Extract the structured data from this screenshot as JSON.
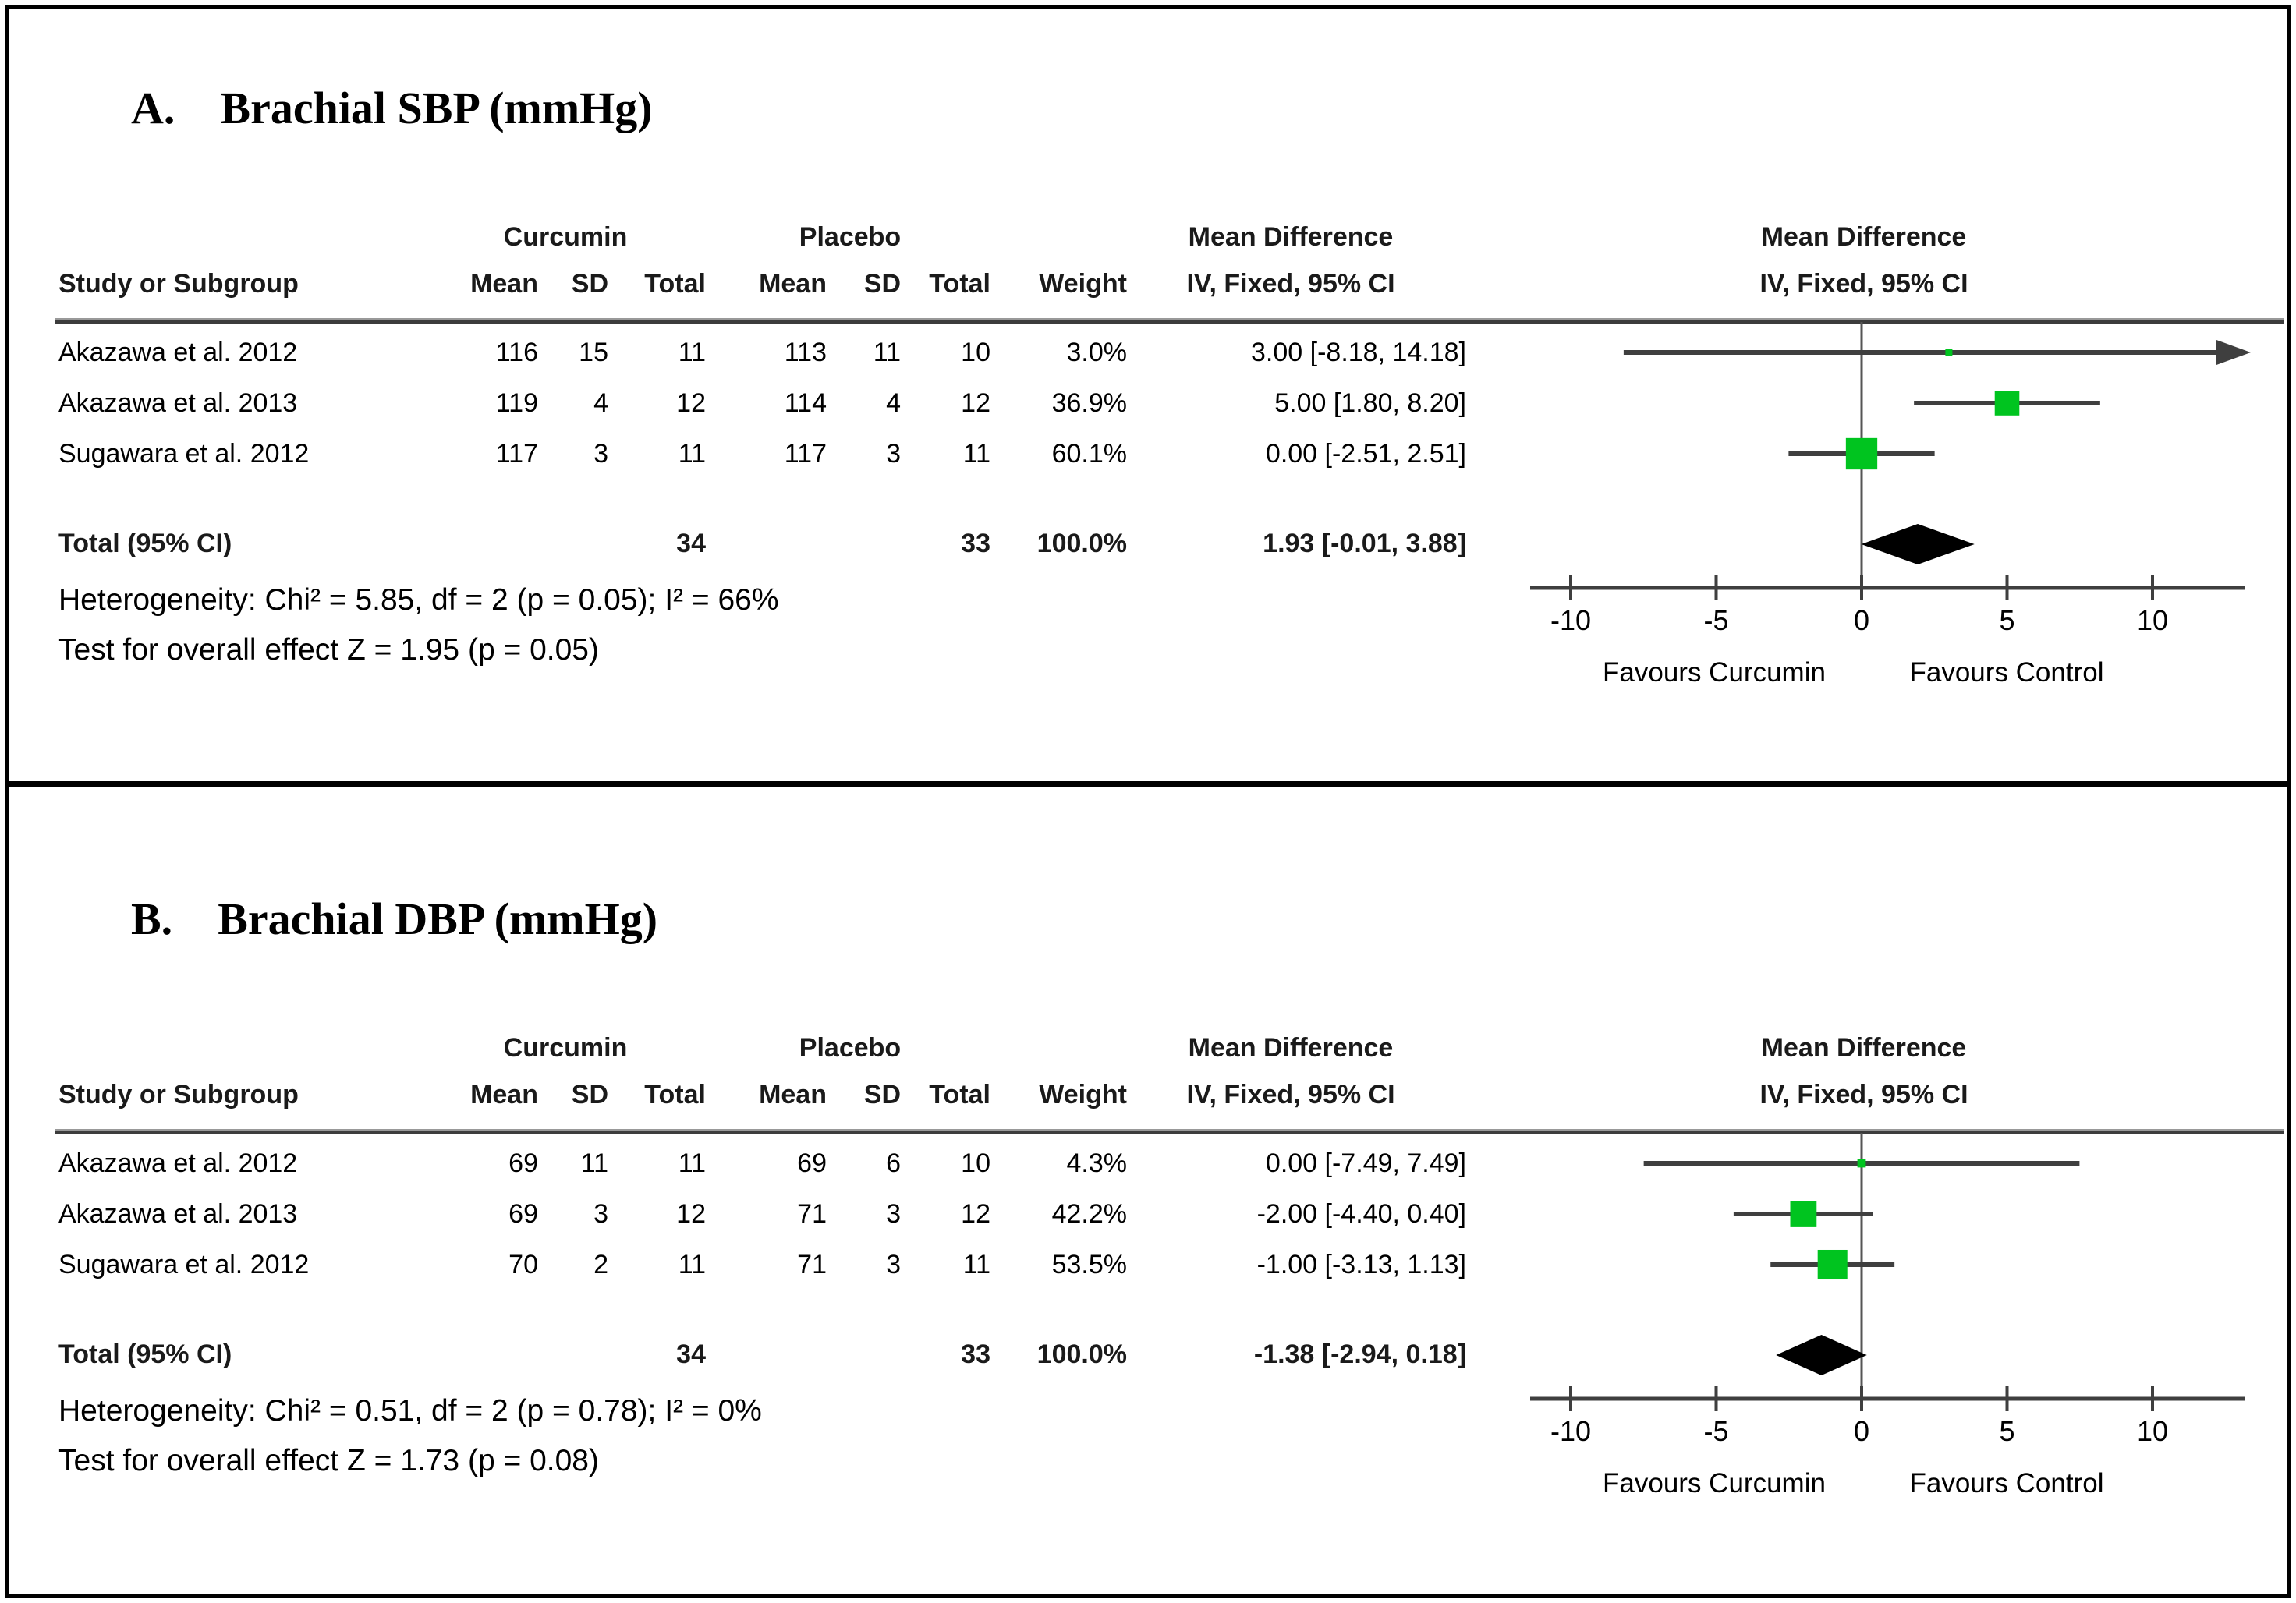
{
  "figure": {
    "panels": [
      {
        "label": "A.",
        "title": "Brachial SBP (mmHg)",
        "table": {
          "group_curcumin": "Curcumin",
          "group_placebo": "Placebo",
          "group_md": "Mean Difference",
          "columns": [
            "Study or Subgroup",
            "Mean",
            "SD",
            "Total",
            "Mean",
            "SD",
            "Total",
            "Weight",
            "IV, Fixed, 95% CI"
          ],
          "rows": [
            [
              "Akazawa et al. 2012",
              "116",
              "15",
              "11",
              "113",
              "11",
              "10",
              "3.0%",
              "3.00 [-8.18, 14.18]"
            ],
            [
              "Akazawa et al. 2013",
              "119",
              "4",
              "12",
              "114",
              "4",
              "12",
              "36.9%",
              "5.00 [1.80, 8.20]"
            ],
            [
              "Sugawara et al. 2012",
              "117",
              "3",
              "11",
              "117",
              "3",
              "11",
              "60.1%",
              "0.00 [-2.51, 2.51]"
            ]
          ],
          "total": {
            "label": "Total (95% CI)",
            "c_total": "34",
            "p_total": "33",
            "weight": "100.0%",
            "ci": "1.93 [-0.01, 3.88]"
          },
          "heterogeneity": "Heterogeneity: Chi² = 5.85, df = 2 (p = 0.05); I² = 66%",
          "overall_effect": "Test for overall effect Z = 1.95 (p = 0.05)"
        },
        "plot": {
          "header_line1": "Mean Difference",
          "header_line2": "IV, Fixed, 95% CI",
          "favours_left": "Favours Curcumin",
          "favours_right": "Favours Control"
        }
      },
      {
        "label": "B.",
        "title": "Brachial DBP (mmHg)",
        "table": {
          "group_curcumin": "Curcumin",
          "group_placebo": "Placebo",
          "group_md": "Mean Difference",
          "columns": [
            "Study or Subgroup",
            "Mean",
            "SD",
            "Total",
            "Mean",
            "SD",
            "Total",
            "Weight",
            "IV, Fixed, 95% CI"
          ],
          "rows": [
            [
              "Akazawa et al. 2012",
              "69",
              "11",
              "11",
              "69",
              "6",
              "10",
              "4.3%",
              "0.00 [-7.49, 7.49]"
            ],
            [
              "Akazawa et al. 2013",
              "69",
              "3",
              "12",
              "71",
              "3",
              "12",
              "42.2%",
              "-2.00 [-4.40, 0.40]"
            ],
            [
              "Sugawara et al. 2012",
              "70",
              "2",
              "11",
              "71",
              "3",
              "11",
              "53.5%",
              "-1.00 [-3.13, 1.13]"
            ]
          ],
          "total": {
            "label": "Total (95% CI)",
            "c_total": "34",
            "p_total": "33",
            "weight": "100.0%",
            "ci": "-1.38 [-2.94, 0.18]"
          },
          "heterogeneity": "Heterogeneity: Chi² = 0.51, df = 2 (p = 0.78); I² = 0%",
          "overall_effect": "Test for overall effect Z = 1.73 (p = 0.08)"
        },
        "plot": {
          "header_line1": "Mean Difference",
          "header_line2": "IV, Fixed, 95% CI",
          "favours_left": "Favours Curcumin",
          "favours_right": "Favours Control"
        }
      }
    ]
  },
  "colors": {
    "square_green": "#00C41F",
    "line_gray": "#3f3f3f",
    "diamond_black": "#000000"
  },
  "chart_data": [
    {
      "type": "forest",
      "title": "A. Brachial SBP (mmHg)",
      "effect_measure": "Mean Difference IV, Fixed, 95% CI",
      "studies": [
        "Akazawa et al. 2012",
        "Akazawa et al. 2013",
        "Sugawara et al. 2012"
      ],
      "estimates": [
        3.0,
        5.0,
        0.0
      ],
      "ci_low": [
        -8.18,
        1.8,
        -2.51
      ],
      "ci_high": [
        14.18,
        8.2,
        2.51
      ],
      "weights_pct": [
        3.0,
        36.9,
        60.1
      ],
      "curcumin": {
        "means": [
          116,
          119,
          117
        ],
        "sds": [
          15,
          4,
          3
        ],
        "totals": [
          11,
          12,
          11
        ],
        "total_n": 34
      },
      "placebo": {
        "means": [
          113,
          114,
          117
        ],
        "sds": [
          11,
          4,
          3
        ],
        "totals": [
          10,
          12,
          11
        ],
        "total_n": 33
      },
      "total": {
        "estimate": 1.93,
        "ci_low": -0.01,
        "ci_high": 3.88,
        "weight_pct": 100.0
      },
      "heterogeneity": {
        "chi2": 5.85,
        "df": 2,
        "p": 0.05,
        "i2_pct": 66
      },
      "overall_effect": {
        "z": 1.95,
        "p": 0.05
      },
      "xlim": [
        -10,
        10
      ],
      "xticks": [
        -10,
        -5,
        0,
        5,
        10
      ],
      "x_axis_labels": [
        "Favours Curcumin",
        "Favours Control"
      ]
    },
    {
      "type": "forest",
      "title": "B. Brachial DBP (mmHg)",
      "effect_measure": "Mean Difference IV, Fixed, 95% CI",
      "studies": [
        "Akazawa et al. 2012",
        "Akazawa et al. 2013",
        "Sugawara et al. 2012"
      ],
      "estimates": [
        0.0,
        -2.0,
        -1.0
      ],
      "ci_low": [
        -7.49,
        -4.4,
        -3.13
      ],
      "ci_high": [
        7.49,
        0.4,
        1.13
      ],
      "weights_pct": [
        4.3,
        42.2,
        53.5
      ],
      "curcumin": {
        "means": [
          69,
          69,
          70
        ],
        "sds": [
          11,
          3,
          2
        ],
        "totals": [
          11,
          12,
          11
        ],
        "total_n": 34
      },
      "placebo": {
        "means": [
          69,
          71,
          71
        ],
        "sds": [
          6,
          3,
          3
        ],
        "totals": [
          10,
          12,
          11
        ],
        "total_n": 33
      },
      "total": {
        "estimate": -1.38,
        "ci_low": -2.94,
        "ci_high": 0.18,
        "weight_pct": 100.0
      },
      "heterogeneity": {
        "chi2": 0.51,
        "df": 2,
        "p": 0.78,
        "i2_pct": 0
      },
      "overall_effect": {
        "z": 1.73,
        "p": 0.08
      },
      "xlim": [
        -10,
        10
      ],
      "xticks": [
        -10,
        -5,
        0,
        5,
        10
      ],
      "x_axis_labels": [
        "Favours Curcumin",
        "Favours Control"
      ]
    }
  ]
}
